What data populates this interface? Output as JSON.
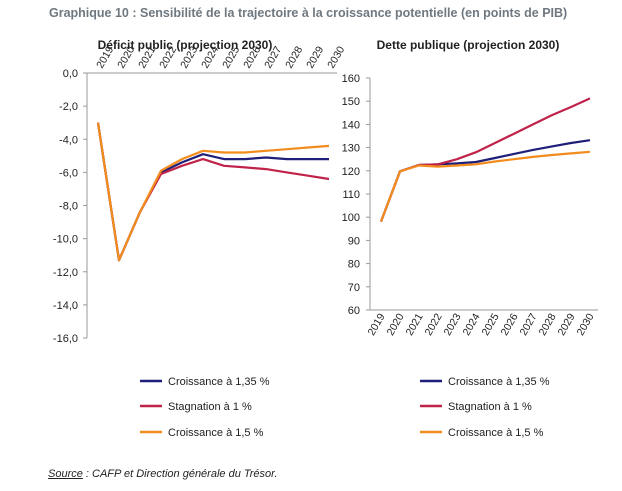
{
  "header": {
    "title": "Graphique 10 : Sensibilité de la trajectoire à la croissance potentielle (en points de PIB)"
  },
  "source": {
    "label": "Source",
    "text": " : CAFP et Direction générale du Trésor."
  },
  "colors": {
    "croissance_135": "#1f1f7a",
    "stagnation": "#c0234a",
    "croissance_15": "#f28c1c",
    "axis": "#9a9a9a"
  },
  "chart_data": [
    {
      "type": "line",
      "title": "Déficit public (projection 2030)",
      "x": [
        "2019",
        "2020",
        "2021",
        "2022",
        "2023",
        "2024",
        "2025",
        "2026",
        "2027",
        "2028",
        "2029",
        "2030"
      ],
      "ylim": [
        -16,
        0
      ],
      "yticks": [
        "0,0",
        "-2,0",
        "-4,0",
        "-6,0",
        "-8,0",
        "-10,0",
        "-12,0",
        "-14,0",
        "-16,0"
      ],
      "ytick_values": [
        0,
        -2,
        -4,
        -6,
        -8,
        -10,
        -12,
        -14,
        -16
      ],
      "series": [
        {
          "name": "Croissance à 1,35 %",
          "color": "#1f1f7a",
          "values": [
            -3.0,
            -11.3,
            -8.4,
            -6.0,
            -5.4,
            -4.9,
            -5.2,
            -5.2,
            -5.1,
            -5.2,
            -5.2,
            -5.2
          ]
        },
        {
          "name": "Stagnation à 1 %",
          "color": "#c0234a",
          "values": [
            -3.0,
            -11.3,
            -8.4,
            -6.1,
            -5.6,
            -5.2,
            -5.6,
            -5.7,
            -5.8,
            -6.0,
            -6.2,
            -6.4
          ]
        },
        {
          "name": "Croissance à 1,5 %",
          "color": "#f28c1c",
          "values": [
            -3.0,
            -11.3,
            -8.4,
            -5.9,
            -5.2,
            -4.7,
            -4.8,
            -4.8,
            -4.7,
            -4.6,
            -4.5,
            -4.4
          ]
        }
      ],
      "legend": "bottom"
    },
    {
      "type": "line",
      "title": "Dette publique (projection 2030)",
      "x": [
        "2019",
        "2020",
        "2021",
        "2022",
        "2023",
        "2024",
        "2025",
        "2026",
        "2027",
        "2028",
        "2029",
        "2030"
      ],
      "ylim": [
        60,
        160
      ],
      "yticks": [
        "160",
        "150",
        "140",
        "130",
        "120",
        "110",
        "100",
        "90",
        "80",
        "70",
        "60"
      ],
      "ytick_values": [
        160,
        150,
        140,
        130,
        120,
        110,
        100,
        90,
        80,
        70,
        60
      ],
      "series": [
        {
          "name": "Croissance à 1,35 %",
          "color": "#1f1f7a",
          "values": [
            98.1,
            119.8,
            122.5,
            122.8,
            123.2,
            123.8,
            125.5,
            127.3,
            129.0,
            130.5,
            132.0,
            133.2
          ]
        },
        {
          "name": "Stagnation à 1 %",
          "color": "#c0234a",
          "values": [
            98.1,
            119.8,
            122.5,
            122.8,
            125.0,
            128.0,
            132.0,
            136.0,
            140.0,
            144.0,
            147.5,
            151.2
          ]
        },
        {
          "name": "Croissance à 1,5 %",
          "color": "#f28c1c",
          "values": [
            98.1,
            119.8,
            122.3,
            121.8,
            122.3,
            122.8,
            124.0,
            125.0,
            126.0,
            126.8,
            127.5,
            128.2
          ]
        }
      ],
      "legend": "bottom"
    }
  ]
}
